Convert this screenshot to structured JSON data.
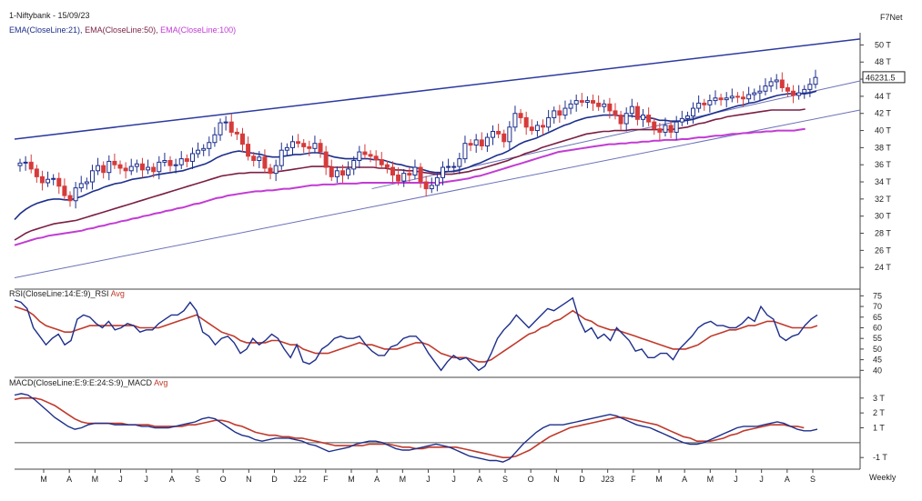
{
  "header": {
    "symbol": "1-Niftybank - 15/09/23",
    "source": "F7Net",
    "ema21": "EMA(CloseLine:21),",
    "ema50": "EMA(CloseLine:50),",
    "ema100": "EMA(CloseLine:100)",
    "rsi_label": "RSI(CloseLine:14:E:9)_RSI",
    "rsi_avg": "Avg",
    "macd_label": "MACD(CloseLine:E:9:E:24:S:9)_MACD",
    "macd_avg": "Avg",
    "timeframe": "Weekly",
    "price_label": "46231.5"
  },
  "colors": {
    "ema21": "#1d2f8c",
    "ema50": "#7a1f44",
    "ema100": "#c23bd4",
    "up_candle": "#1d2f8c",
    "down_candle": "#d63b3b",
    "trend_upper": "#2d3a9e",
    "trend_lower": "#6b72b8",
    "rsi": "#1d2f8c",
    "rsi_avg": "#c0392b",
    "macd": "#1d2f8c",
    "macd_avg": "#c0392b"
  },
  "chart_data": [
    {
      "type": "candlestick",
      "title": "1-Niftybank - 15/09/23",
      "y_unit": "T (thousands)",
      "ylim": [
        22,
        51
      ],
      "ytick_labels": [
        "24 T",
        "26 T",
        "28 T",
        "30 T",
        "32 T",
        "34 T",
        "36 T",
        "38 T",
        "40 T",
        "42 T",
        "44 T",
        "46 T",
        "48 T",
        "50 T"
      ],
      "ytick_values": [
        24,
        26,
        28,
        30,
        32,
        34,
        36,
        38,
        40,
        42,
        44,
        46,
        48,
        50
      ],
      "x_labels": [
        "M",
        "A",
        "M",
        "J",
        "J",
        "A",
        "S",
        "O",
        "N",
        "D",
        "J22",
        "F",
        "M",
        "A",
        "M",
        "J",
        "J",
        "A",
        "S",
        "O",
        "N",
        "D",
        "J23",
        "F",
        "M",
        "A",
        "M",
        "J",
        "J",
        "A",
        "S"
      ],
      "last_price": 46231.5,
      "closes": [
        36.2,
        36.3,
        35.5,
        34.6,
        33.9,
        34.3,
        34.4,
        33.5,
        32.4,
        31.8,
        33.3,
        33.8,
        34.0,
        35.3,
        35.9,
        35.1,
        36.4,
        36.0,
        35.6,
        35.3,
        35.8,
        36.1,
        35.4,
        35.7,
        35.2,
        36.3,
        36.5,
        35.9,
        36.0,
        36.7,
        36.4,
        37.3,
        37.7,
        37.9,
        38.6,
        39.5,
        40.9,
        41.0,
        39.8,
        39.6,
        38.4,
        37.0,
        36.5,
        36.9,
        35.6,
        35.0,
        35.9,
        37.7,
        38.0,
        38.7,
        38.5,
        38.1,
        37.9,
        38.5,
        37.5,
        35.7,
        34.6,
        35.3,
        34.8,
        35.5,
        36.5,
        37.5,
        37.2,
        37.0,
        36.6,
        36.0,
        35.7,
        34.8,
        34.1,
        35.0,
        34.8,
        35.7,
        34.0,
        33.2,
        33.6,
        34.5,
        35.7,
        35.8,
        35.8,
        36.7,
        38.5,
        38.3,
        38.9,
        38.2,
        39.2,
        39.9,
        39.6,
        38.7,
        40.4,
        42.0,
        41.5,
        40.4,
        40.0,
        40.6,
        40.4,
        41.5,
        42.3,
        41.8,
        42.6,
        43.1,
        43.5,
        43.3,
        43.5,
        43.2,
        42.8,
        43.1,
        42.3,
        41.8,
        40.8,
        42.0,
        42.8,
        41.3,
        41.8,
        41.0,
        40.2,
        39.8,
        40.6,
        39.8,
        41.0,
        41.4,
        41.7,
        42.6,
        43.2,
        43.0,
        43.5,
        43.8,
        43.6,
        43.8,
        44.0,
        43.9,
        43.7,
        44.2,
        44.4,
        44.6,
        45.2,
        45.7,
        45.9,
        45.0,
        44.6,
        44.1,
        44.4,
        44.8,
        45.4,
        46.2
      ],
      "ema21": [
        29.6,
        30.3,
        30.8,
        31.2,
        31.5,
        31.7,
        31.9,
        32.0,
        32.0,
        31.9,
        31.9,
        32.1,
        32.3,
        32.6,
        32.9,
        33.1,
        33.4,
        33.6,
        33.8,
        33.9,
        34.1,
        34.3,
        34.4,
        34.5,
        34.6,
        34.8,
        34.9,
        35.0,
        35.1,
        35.2,
        35.3,
        35.5,
        35.7,
        35.9,
        36.1,
        36.4,
        36.8,
        37.1,
        37.3,
        37.5,
        37.6,
        37.5,
        37.4,
        37.3,
        37.2,
        37.0,
        36.9,
        36.9,
        37.0,
        37.1,
        37.2,
        37.2,
        37.3,
        37.4,
        37.4,
        37.3,
        37.1,
        36.9,
        36.8,
        36.7,
        36.7,
        36.7,
        36.7,
        36.7,
        36.6,
        36.6,
        36.5,
        36.3,
        36.1,
        36.0,
        35.8,
        35.7,
        35.6,
        35.4,
        35.2,
        35.1,
        35.1,
        35.2,
        35.2,
        35.3,
        35.5,
        35.7,
        36.0,
        36.2,
        36.5,
        36.8,
        37.1,
        37.3,
        37.6,
        38.0,
        38.4,
        38.7,
        38.9,
        39.1,
        39.4,
        39.7,
        40.0,
        40.3,
        40.6,
        40.8,
        41.1,
        41.3,
        41.5,
        41.6,
        41.7,
        41.8,
        41.8,
        41.8,
        41.7,
        41.7,
        41.7,
        41.6,
        41.6,
        41.5,
        41.4,
        41.2,
        41.2,
        41.1,
        41.1,
        41.1,
        41.2,
        41.3,
        41.5,
        41.7,
        41.9,
        42.1,
        42.3,
        42.5,
        42.7,
        42.9,
        43.0,
        43.2,
        43.3,
        43.5,
        43.7,
        43.9,
        44.1,
        44.2,
        44.3,
        44.3,
        44.3,
        44.3,
        44.4,
        44.6
      ],
      "ema50": [
        27.2,
        27.6,
        28.0,
        28.3,
        28.5,
        28.7,
        28.9,
        29.1,
        29.2,
        29.3,
        29.4,
        29.5,
        29.7,
        29.9,
        30.1,
        30.3,
        30.5,
        30.7,
        30.9,
        31.1,
        31.3,
        31.5,
        31.7,
        31.9,
        32.1,
        32.3,
        32.5,
        32.7,
        32.9,
        33.1,
        33.3,
        33.5,
        33.7,
        33.9,
        34.1,
        34.3,
        34.5,
        34.7,
        34.8,
        34.9,
        35.0,
        35.0,
        35.1,
        35.1,
        35.1,
        35.1,
        35.1,
        35.2,
        35.3,
        35.4,
        35.5,
        35.6,
        35.7,
        35.8,
        35.8,
        35.8,
        35.8,
        35.7,
        35.7,
        35.7,
        35.7,
        35.7,
        35.7,
        35.7,
        35.7,
        35.6,
        35.6,
        35.5,
        35.4,
        35.4,
        35.3,
        35.3,
        35.2,
        35.1,
        35.0,
        34.9,
        34.9,
        34.9,
        34.9,
        35.0,
        35.1,
        35.2,
        35.4,
        35.5,
        35.7,
        35.9,
        36.1,
        36.3,
        36.5,
        36.8,
        37.0,
        37.3,
        37.5,
        37.7,
        38.0,
        38.2,
        38.4,
        38.6,
        38.8,
        39.0,
        39.2,
        39.4,
        39.6,
        39.7,
        39.8,
        39.9,
        39.9,
        40.0,
        40.0,
        40.0,
        40.1,
        40.1,
        40.1,
        40.1,
        40.1,
        40.1,
        40.1,
        40.1,
        40.2,
        40.3,
        40.4,
        40.6,
        40.8,
        40.9,
        41.1,
        41.3,
        41.4,
        41.6,
        41.7,
        41.8,
        41.9,
        42.0,
        42.1,
        42.2,
        42.3,
        42.4,
        42.4,
        42.4,
        42.4,
        42.4,
        42.4,
        42.5
      ],
      "ema100": [
        26.6,
        26.8,
        27.0,
        27.2,
        27.4,
        27.5,
        27.7,
        27.8,
        27.9,
        28.0,
        28.1,
        28.2,
        28.3,
        28.5,
        28.6,
        28.8,
        28.9,
        29.1,
        29.2,
        29.4,
        29.5,
        29.7,
        29.8,
        30.0,
        30.1,
        30.3,
        30.4,
        30.6,
        30.7,
        30.9,
        31.0,
        31.2,
        31.4,
        31.5,
        31.7,
        31.9,
        32.1,
        32.2,
        32.4,
        32.5,
        32.6,
        32.7,
        32.8,
        32.9,
        32.9,
        33.0,
        33.0,
        33.1,
        33.2,
        33.2,
        33.3,
        33.4,
        33.5,
        33.6,
        33.6,
        33.7,
        33.7,
        33.7,
        33.8,
        33.8,
        33.8,
        33.8,
        33.9,
        33.9,
        33.9,
        33.9,
        33.9,
        33.9,
        33.9,
        33.9,
        33.9,
        33.9,
        33.9,
        33.9,
        33.9,
        33.9,
        33.9,
        34.0,
        34.1,
        34.2,
        34.3,
        34.4,
        34.6,
        34.7,
        34.9,
        35.1,
        35.3,
        35.5,
        35.7,
        35.9,
        36.1,
        36.3,
        36.5,
        36.7,
        36.9,
        37.1,
        37.3,
        37.5,
        37.6,
        37.7,
        37.8,
        37.9,
        38.0,
        38.1,
        38.2,
        38.3,
        38.4,
        38.4,
        38.5,
        38.5,
        38.6,
        38.6,
        38.7,
        38.7,
        38.8,
        38.8,
        38.9,
        38.9,
        38.9,
        39.0,
        39.0,
        39.1,
        39.2,
        39.2,
        39.3,
        39.4,
        39.4,
        39.5,
        39.6,
        39.6,
        39.7,
        39.7,
        39.8,
        39.8,
        39.9,
        39.9,
        40.0,
        40.0,
        40.0,
        40.0,
        40.1,
        40.2
      ],
      "trendlines": [
        {
          "name": "upper",
          "from": [
            0,
            39.0
          ],
          "to": [
            142,
            50.7
          ]
        },
        {
          "name": "lower",
          "from": [
            0,
            22.8
          ],
          "to": [
            142,
            42.4
          ]
        },
        {
          "name": "mid",
          "from": [
            60,
            33.2
          ],
          "to": [
            142,
            45.8
          ]
        }
      ]
    },
    {
      "type": "line",
      "title": "RSI(CloseLine:14:E:9)_RSI Avg",
      "ylim": [
        38,
        76
      ],
      "ytick_labels": [
        "40",
        "45",
        "50",
        "55",
        "60",
        "65",
        "70",
        "75"
      ],
      "ytick_values": [
        40,
        45,
        50,
        55,
        60,
        65,
        70,
        75
      ],
      "series": [
        {
          "name": "RSI",
          "values": [
            73,
            72,
            69,
            60,
            56,
            52,
            55,
            57,
            52,
            54,
            64,
            66,
            65,
            62,
            60,
            63,
            59,
            60,
            62,
            61,
            58,
            59,
            59,
            62,
            64,
            66,
            66,
            68,
            72,
            68,
            58,
            56,
            52,
            55,
            56,
            53,
            48,
            50,
            55,
            52,
            54,
            57,
            55,
            50,
            46,
            52,
            44,
            43,
            45,
            50,
            52,
            55,
            56,
            55,
            55,
            56,
            52,
            49,
            47,
            47,
            51,
            52,
            55,
            56,
            56,
            53,
            48,
            44,
            40,
            44,
            47,
            45,
            46,
            43,
            40,
            42,
            48,
            55,
            59,
            62,
            66,
            63,
            60,
            63,
            66,
            69,
            68,
            70,
            72,
            74,
            64,
            58,
            60,
            55,
            57,
            54,
            60,
            57,
            54,
            49,
            50,
            46,
            46,
            48,
            48,
            45,
            50,
            53,
            56,
            60,
            62,
            63,
            61,
            61,
            60,
            60,
            62,
            65,
            63,
            70,
            66,
            64,
            56,
            54,
            56,
            57,
            61,
            64,
            66
          ],
          "note": "RSI values approximate"
        },
        {
          "name": "Avg",
          "values": [
            70,
            69,
            68,
            66,
            63,
            61,
            60,
            59,
            58,
            58,
            59,
            60,
            61,
            61,
            61,
            61,
            61,
            61,
            61,
            61,
            60,
            60,
            60,
            60,
            61,
            62,
            63,
            64,
            65,
            66,
            64,
            62,
            60,
            58,
            57,
            56,
            54,
            53,
            53,
            53,
            53,
            54,
            54,
            53,
            52,
            52,
            50,
            49,
            48,
            48,
            48,
            49,
            50,
            51,
            52,
            53,
            52,
            52,
            51,
            50,
            50,
            50,
            51,
            52,
            53,
            53,
            52,
            50,
            48,
            47,
            46,
            46,
            46,
            45,
            44,
            44,
            45,
            47,
            49,
            51,
            53,
            55,
            57,
            58,
            60,
            61,
            63,
            64,
            66,
            68,
            66,
            64,
            63,
            61,
            60,
            59,
            59,
            58,
            57,
            56,
            55,
            54,
            53,
            52,
            51,
            50,
            50,
            50,
            51,
            52,
            54,
            56,
            57,
            58,
            59,
            59,
            60,
            61,
            61,
            62,
            63,
            63,
            62,
            61,
            60,
            60,
            60,
            60,
            61
          ]
        }
      ]
    },
    {
      "type": "line",
      "title": "MACD(CloseLine:E:9:E:24:S:9)_MACD Avg",
      "ylim": [
        -1.6,
        3.6
      ],
      "ytick_labels": [
        "-1 T",
        "1 T",
        "2 T",
        "3 T"
      ],
      "ytick_values": [
        -1,
        1,
        2,
        3
      ],
      "zero_line": 0,
      "series": [
        {
          "name": "MACD",
          "values": [
            3.2,
            3.3,
            3.2,
            2.9,
            2.5,
            2.1,
            1.7,
            1.4,
            1.1,
            0.9,
            1.0,
            1.2,
            1.3,
            1.3,
            1.3,
            1.2,
            1.2,
            1.2,
            1.2,
            1.1,
            1.1,
            1.0,
            1.0,
            1.0,
            1.1,
            1.2,
            1.3,
            1.4,
            1.6,
            1.7,
            1.6,
            1.3,
            1.0,
            0.7,
            0.5,
            0.4,
            0.2,
            0.1,
            0.2,
            0.3,
            0.3,
            0.3,
            0.2,
            0.1,
            -0.1,
            -0.2,
            -0.4,
            -0.6,
            -0.5,
            -0.4,
            -0.3,
            -0.1,
            0.0,
            0.1,
            0.1,
            0.0,
            -0.2,
            -0.4,
            -0.5,
            -0.5,
            -0.4,
            -0.3,
            -0.2,
            -0.1,
            -0.2,
            -0.3,
            -0.5,
            -0.7,
            -0.9,
            -1.0,
            -1.1,
            -1.2,
            -1.2,
            -1.3,
            -1.1,
            -0.6,
            -0.1,
            0.3,
            0.7,
            1.0,
            1.2,
            1.2,
            1.2,
            1.3,
            1.4,
            1.5,
            1.6,
            1.7,
            1.8,
            1.9,
            1.8,
            1.6,
            1.4,
            1.2,
            1.1,
            1.0,
            0.8,
            0.6,
            0.4,
            0.2,
            0.0,
            -0.1,
            -0.1,
            0.0,
            0.2,
            0.4,
            0.6,
            0.8,
            1.0,
            1.1,
            1.1,
            1.1,
            1.2,
            1.3,
            1.4,
            1.3,
            1.1,
            0.9,
            0.8,
            0.8,
            0.9
          ],
          "note": "MACD values approximate, thousands"
        },
        {
          "name": "Avg",
          "values": [
            2.9,
            3.0,
            3.0,
            3.0,
            2.9,
            2.7,
            2.5,
            2.2,
            1.9,
            1.6,
            1.4,
            1.3,
            1.3,
            1.3,
            1.3,
            1.3,
            1.3,
            1.2,
            1.2,
            1.2,
            1.2,
            1.1,
            1.1,
            1.1,
            1.1,
            1.1,
            1.2,
            1.2,
            1.3,
            1.4,
            1.5,
            1.5,
            1.4,
            1.2,
            1.1,
            0.9,
            0.7,
            0.6,
            0.5,
            0.5,
            0.4,
            0.4,
            0.3,
            0.3,
            0.2,
            0.1,
            0.0,
            -0.1,
            -0.2,
            -0.2,
            -0.2,
            -0.2,
            -0.2,
            -0.1,
            -0.1,
            -0.1,
            -0.1,
            -0.2,
            -0.3,
            -0.3,
            -0.4,
            -0.4,
            -0.3,
            -0.3,
            -0.3,
            -0.3,
            -0.3,
            -0.4,
            -0.5,
            -0.6,
            -0.7,
            -0.8,
            -0.9,
            -1.0,
            -1.0,
            -0.9,
            -0.7,
            -0.5,
            -0.2,
            0.1,
            0.4,
            0.6,
            0.8,
            1.0,
            1.1,
            1.2,
            1.3,
            1.4,
            1.5,
            1.6,
            1.7,
            1.7,
            1.6,
            1.5,
            1.4,
            1.3,
            1.2,
            1.0,
            0.8,
            0.6,
            0.4,
            0.3,
            0.1,
            0.1,
            0.1,
            0.2,
            0.3,
            0.5,
            0.6,
            0.8,
            0.9,
            1.0,
            1.1,
            1.2,
            1.2,
            1.2,
            1.1,
            1.1,
            1.0
          ]
        }
      ]
    }
  ]
}
